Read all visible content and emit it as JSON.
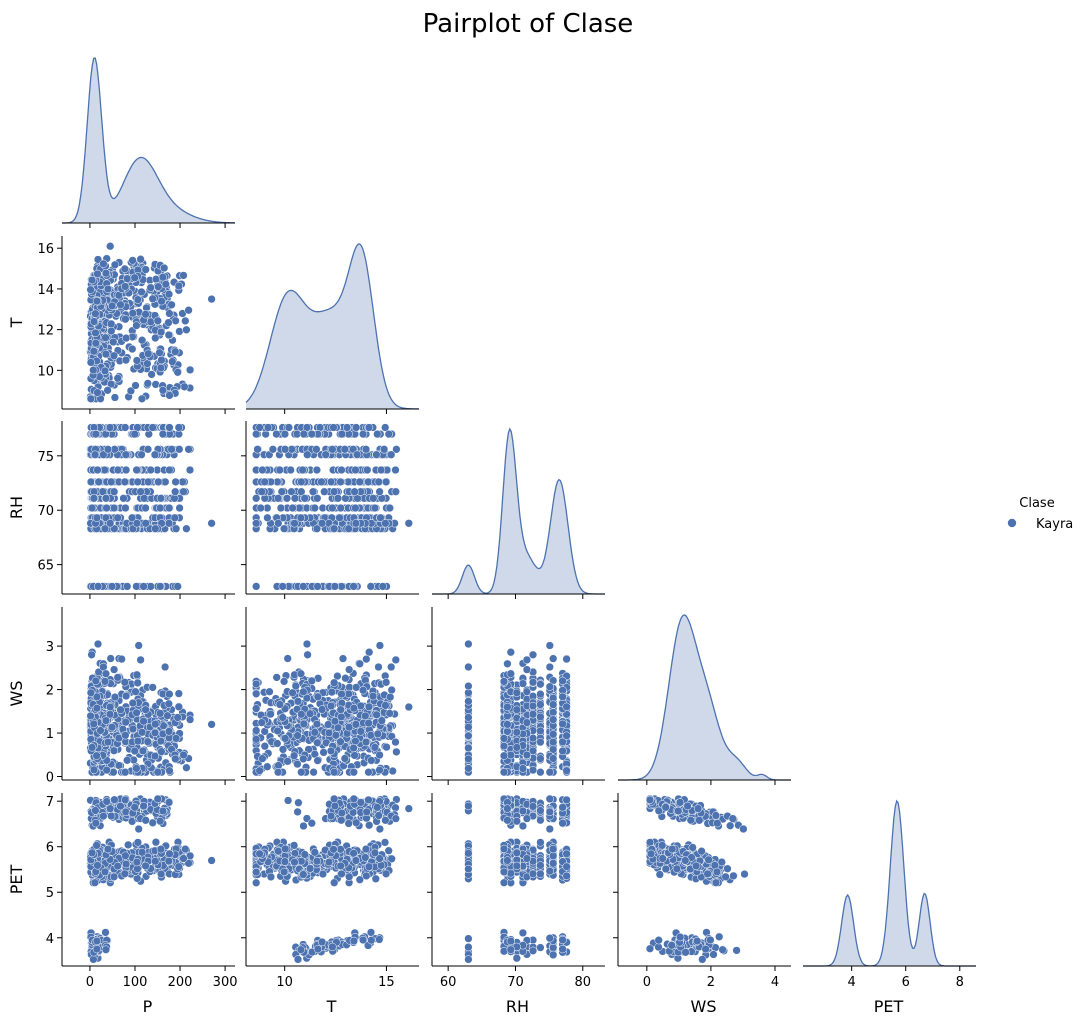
{
  "title": "Pairplot of Clase",
  "colors": {
    "marker": "#4c72b0",
    "marker_edge": "#ffffff",
    "kde_fill": "#cfd9ea",
    "axis": "#000000",
    "text": "#000000"
  },
  "legend": {
    "title": "Clase",
    "items": [
      {
        "label": "Kayra",
        "color": "#4c72b0"
      }
    ],
    "placement": "right"
  },
  "chart_data": {
    "type": "scatter",
    "kind": "pairplot",
    "corner": true,
    "hue": "Clase",
    "variables": [
      "P",
      "T",
      "RH",
      "WS",
      "PET"
    ],
    "axes": {
      "P": {
        "range": [
          -62,
          322
        ],
        "ticks": [
          0,
          100,
          200,
          300
        ]
      },
      "T": {
        "range": [
          8.1,
          16.6
        ],
        "ticks": [
          10,
          12,
          14,
          16
        ],
        "xticks": [
          10,
          15
        ]
      },
      "RH": {
        "range": [
          62.3,
          78.2
        ],
        "ticks": [
          65,
          70,
          75
        ],
        "xticks": [
          60,
          70,
          80
        ],
        "xrange": [
          57.6,
          83.3
        ]
      },
      "WS": {
        "range": [
          -0.08,
          3.9
        ],
        "ticks": [
          0,
          1,
          2,
          3
        ],
        "xticks": [
          0,
          2,
          4
        ],
        "xrange": [
          -0.9,
          4.5
        ]
      },
      "PET": {
        "range": [
          3.38,
          7.18
        ],
        "ticks": [
          4,
          5,
          6,
          7
        ],
        "xticks": [
          4,
          6,
          8
        ],
        "xrange": [
          2.2,
          8.6
        ]
      }
    },
    "rh_levels": [
      63,
      68.3,
      68.8,
      69.3,
      70.2,
      71.1,
      71.7,
      72.6,
      73.7,
      75.1,
      75.6,
      77.0,
      77.6
    ],
    "diag_kde": {
      "P": {
        "peaks": [
          {
            "mu": 10,
            "sigma": 16,
            "w": 1.0
          },
          {
            "mu": 110,
            "sigma": 38,
            "w": 0.36
          },
          {
            "mu": 170,
            "sigma": 50,
            "w": 0.08
          }
        ]
      },
      "T": {
        "peaks": [
          {
            "mu": 10.1,
            "sigma": 0.85,
            "w": 0.62
          },
          {
            "mu": 12.3,
            "sigma": 1.1,
            "w": 0.55
          },
          {
            "mu": 13.8,
            "sigma": 0.6,
            "w": 0.75
          }
        ]
      },
      "RH": {
        "peaks": [
          {
            "mu": 63,
            "sigma": 0.9,
            "w": 0.19
          },
          {
            "mu": 69.1,
            "sigma": 1.0,
            "w": 1.0
          },
          {
            "mu": 71.5,
            "sigma": 1.6,
            "w": 0.25
          },
          {
            "mu": 76.5,
            "sigma": 1.3,
            "w": 0.75
          }
        ]
      },
      "WS": {
        "peaks": [
          {
            "mu": 1.1,
            "sigma": 0.42,
            "w": 0.9
          },
          {
            "mu": 1.9,
            "sigma": 0.4,
            "w": 0.4
          },
          {
            "mu": 2.8,
            "sigma": 0.3,
            "w": 0.1
          },
          {
            "mu": 3.6,
            "sigma": 0.15,
            "w": 0.03
          }
        ]
      },
      "PET": {
        "peaks": [
          {
            "mu": 3.85,
            "sigma": 0.22,
            "w": 0.43
          },
          {
            "mu": 5.68,
            "sigma": 0.25,
            "w": 1.0
          },
          {
            "mu": 6.7,
            "sigma": 0.2,
            "w": 0.44
          }
        ]
      }
    },
    "n_points": 600,
    "pet_clusters": [
      {
        "name": "low",
        "pet_range": [
          3.55,
          4.2
        ],
        "share": 0.1
      },
      {
        "name": "mid",
        "pet_range": [
          5.0,
          6.1
        ],
        "share": 0.65
      },
      {
        "name": "high",
        "pet_range": [
          6.3,
          7.05
        ],
        "share": 0.25
      }
    ],
    "x_labels": [
      "P",
      "T",
      "RH",
      "WS",
      "PET"
    ],
    "y_labels": [
      "T",
      "RH",
      "WS",
      "PET"
    ]
  }
}
